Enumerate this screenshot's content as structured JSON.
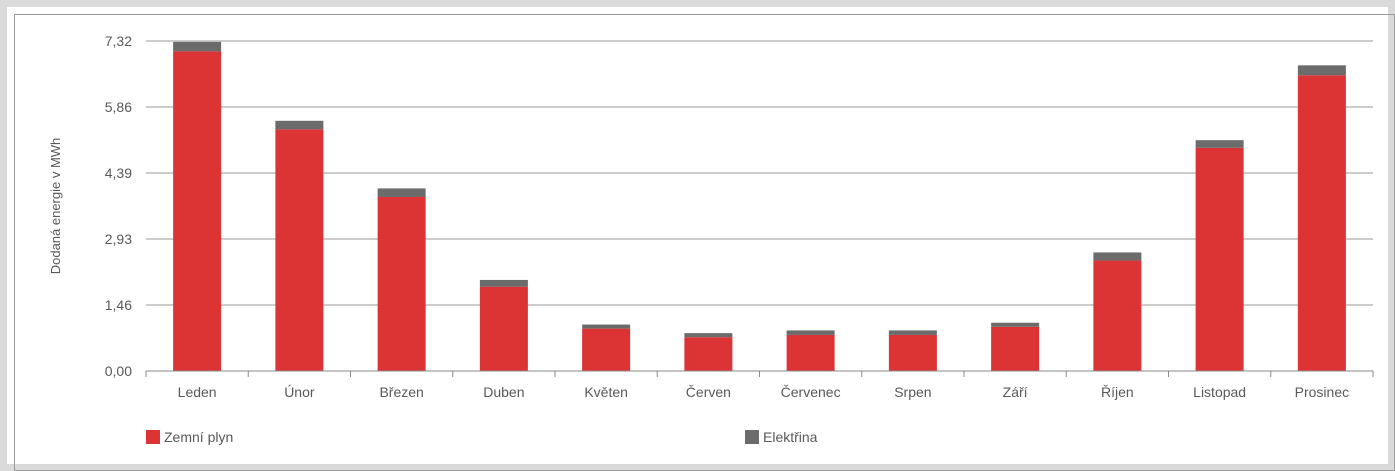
{
  "chart_data": {
    "type": "bar",
    "stacked": true,
    "title": "",
    "xlabel": "",
    "ylabel": "Dodaná energie v MWh",
    "ylim": [
      0,
      7.32
    ],
    "yticks": [
      "0,00",
      "1,46",
      "2,93",
      "4,39",
      "5,86",
      "7,32"
    ],
    "grid": true,
    "legend_position": "bottom",
    "categories": [
      "Leden",
      "Únor",
      "Březen",
      "Duben",
      "Květen",
      "Červen",
      "Červenec",
      "Srpen",
      "Září",
      "Říjen",
      "Listopad",
      "Prosinec"
    ],
    "series": [
      {
        "name": "Zemní plyn",
        "color": "#dc3334",
        "values": [
          7.09,
          5.36,
          3.86,
          1.87,
          0.94,
          0.75,
          0.8,
          0.8,
          0.98,
          2.45,
          4.95,
          6.56
        ]
      },
      {
        "name": "Elektřina",
        "color": "#6b6b6b",
        "values": [
          0.21,
          0.19,
          0.19,
          0.15,
          0.09,
          0.09,
          0.1,
          0.1,
          0.09,
          0.18,
          0.17,
          0.22
        ]
      }
    ]
  }
}
